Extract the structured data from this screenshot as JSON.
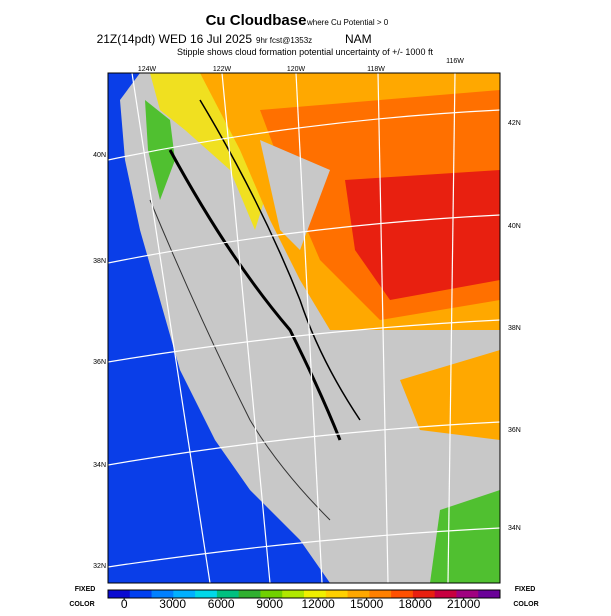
{
  "header": {
    "title": "Cu Cloudbase",
    "title_note": "where Cu Potential > 0",
    "valid": "21Z(14pdt) WED 16 Jul 2025",
    "forecast": "9hr fcst@1353z",
    "model": "NAM",
    "subtitle": "Stipple shows cloud formation potential uncertainty of +/- 1000 ft"
  },
  "map": {
    "lon_labels": [
      "124W",
      "122W",
      "120W",
      "118W",
      "116W"
    ],
    "lat_labels_left": [
      "40N",
      "38N",
      "36N",
      "34N",
      "32N"
    ],
    "lat_labels_right": [
      "42N",
      "40N",
      "38N",
      "36N",
      "34N"
    ]
  },
  "colorbar": {
    "lim": [
      -1000,
      23250
    ],
    "ticks": [
      0,
      3000,
      6000,
      9000,
      12000,
      15000,
      18000,
      21000
    ],
    "colors": [
      "#0a0ad0",
      "#0040f0",
      "#0080ff",
      "#00b0ff",
      "#00d8e8",
      "#00c080",
      "#30b030",
      "#70d000",
      "#b0e800",
      "#f0f000",
      "#ffd000",
      "#ffa800",
      "#ff8000",
      "#ff5000",
      "#e82010",
      "#c80040",
      "#a00080",
      "#6a0098"
    ],
    "corner_left": [
      "FIXED",
      "COLOR"
    ],
    "corner_right": [
      "FIXED",
      "COLOR"
    ]
  }
}
